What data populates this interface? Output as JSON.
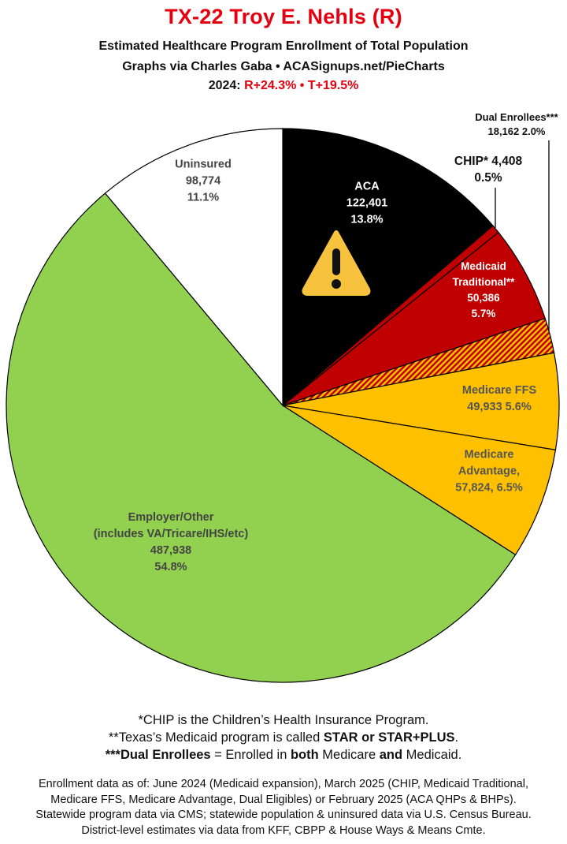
{
  "header": {
    "title": "TX-22 Troy E. Nehls (R)",
    "subtitle1": "Estimated Healthcare Program Enrollment of Total Population",
    "subtitle2": "Graphs via Charles Gaba  •  ACASignups.net/PieCharts",
    "subtitle3_prefix": "2024: ",
    "subtitle3_r": "R+24.3%",
    "subtitle3_sep": " • ",
    "subtitle3_t": "T+19.5%"
  },
  "chart_data": {
    "type": "pie",
    "start": "12 o'clock, clockwise",
    "slices": [
      {
        "key": "aca",
        "label": "ACA",
        "value": 122401,
        "percent": 13.8,
        "value_text": "122,401",
        "percent_text": "13.8%",
        "color": "#000000",
        "text_color": "#ffffff",
        "icon": "warning-icon"
      },
      {
        "key": "chip",
        "label": "CHIP* 4,408",
        "value": 4408,
        "percent": 0.5,
        "value_text": "4,408",
        "percent_text": "0.5%",
        "color": "#c00000",
        "text_color": "#111111"
      },
      {
        "key": "medicaid",
        "label": "Medicaid Traditional**",
        "value": 50386,
        "percent": 5.7,
        "value_text": "50,386",
        "percent_text": "5.7%",
        "color": "#c00000",
        "text_color": "#ffffff"
      },
      {
        "key": "dual",
        "label": "Dual Enrollees***",
        "value": 18162,
        "percent": 2.0,
        "value_text": "18,162 2.0%",
        "percent_text": "2.0%",
        "color": "hatched #c00000/#ffc000",
        "text_color": "#111111"
      },
      {
        "key": "ffs",
        "label": "Medicare FFS",
        "value": 49933,
        "percent": 5.6,
        "value_text": "49,933 5.6%",
        "percent_text": "5.6%",
        "color": "#ffc000",
        "text_color": "#555555"
      },
      {
        "key": "ma",
        "label": "Medicare Advantage,",
        "value": 57824,
        "percent": 6.5,
        "value_text": "57,824, 6.5%",
        "percent_text": "6.5%",
        "color": "#ffc000",
        "text_color": "#555555"
      },
      {
        "key": "employer",
        "label": "Employer/Other",
        "sublabel": "(includes VA/Tricare/IHS/etc)",
        "value": 487938,
        "percent": 54.8,
        "value_text": "487,938",
        "percent_text": "54.8%",
        "color": "#92d050",
        "text_color": "#444444"
      },
      {
        "key": "uninsured",
        "label": "Uninsured",
        "value": 98774,
        "percent": 11.1,
        "value_text": "98,774",
        "percent_text": "11.1%",
        "color": "#ffffff",
        "text_color": "#444444"
      }
    ]
  },
  "labels": {
    "aca": [
      "ACA",
      "122,401",
      "13.8%"
    ],
    "uninsured": [
      "Uninsured",
      "98,774",
      "11.1%"
    ],
    "chip": [
      "CHIP* 4,408",
      "0.5%"
    ],
    "dual": [
      "Dual Enrollees***",
      "18,162 2.0%"
    ],
    "medicaid": [
      "Medicaid",
      "Traditional**",
      "50,386",
      "5.7%"
    ],
    "ffs": [
      "Medicare FFS",
      "49,933 5.6%"
    ],
    "ma": [
      "Medicare",
      "Advantage,",
      "57,824, 6.5%"
    ],
    "employer": [
      "Employer/Other",
      "(includes VA/Tricare/IHS/etc)",
      "487,938",
      "54.8%"
    ]
  },
  "footnotes": {
    "chip": "*CHIP is the Children’s Health Insurance Program.",
    "tx_a": "**Texas’s Medicaid program is called ",
    "tx_b": "STAR or STAR+PLUS",
    "tx_c": ".",
    "dual_a": "***Dual Enrollees",
    "dual_b": " = Enrolled in ",
    "dual_c": "both",
    "dual_d": " Medicare ",
    "dual_e": "and",
    "dual_f": " Medicaid.",
    "sources": [
      "Enrollment data as of: June 2024 (Medicaid expansion), March 2025 (CHIP, Medicaid Traditional,",
      "Medicare FFS, Medicare Advantage, Dual Eligibles) or February 2025 (ACA QHPs & BHPs).",
      "Statewide program data via CMS; statewide population & uninsured data via U.S. Census Bureau.",
      "District-level estimates via data from KFF, CBPP & House Ways & Means Cmte."
    ]
  }
}
